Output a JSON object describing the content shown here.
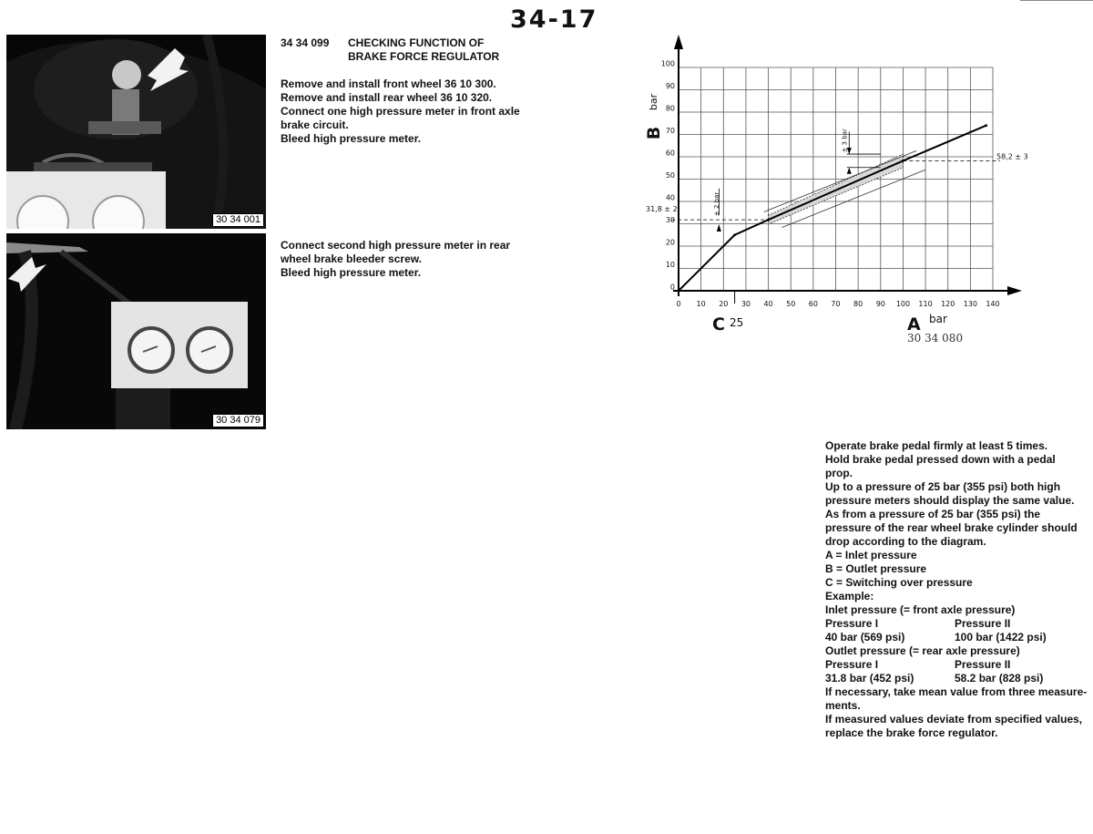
{
  "page": {
    "number": "34-17"
  },
  "section": {
    "code": "34 34 099",
    "title_line1": "CHECKING FUNCTION OF",
    "title_line2": "BRAKE FORCE REGULATOR"
  },
  "photos": [
    {
      "label": "30 34 001"
    },
    {
      "label": "30 34 079"
    }
  ],
  "steps_1": [
    "Remove and install front wheel 36 10 300.",
    "Remove and install rear wheel 36 10 320.",
    "Connect one high pressure meter in front axle",
    "brake circuit.",
    "Bleed high pressure meter."
  ],
  "steps_2": [
    "Connect second high pressure meter in rear",
    "wheel brake bleeder screw.",
    "Bleed high pressure meter."
  ],
  "procedure_top": [
    "Operate brake pedal firmly at least 5 times.",
    "Hold brake pedal pressed down with a pedal",
    "prop.",
    "Up to a pressure of 25 bar (355 psi) both high",
    "pressure meters should display the same value.",
    "As from a pressure of 25 bar (355 psi) the",
    "pressure of the rear wheel brake cylinder should",
    "drop according to the diagram.",
    "A = Inlet pressure",
    "B = Outlet pressure",
    "C = Switching over pressure",
    "Example:",
    "Inlet pressure (= front axle pressure)"
  ],
  "example_inlet": {
    "head_1": "Pressure I",
    "head_2": "Pressure II",
    "val_1": "40 bar (569 psi)",
    "val_2": "100 bar (1422 psi)"
  },
  "outlet_heading": "Outlet pressure (= rear axle pressure)",
  "example_outlet": {
    "head_1": "Pressure I",
    "head_2": "Pressure II",
    "val_1": "31.8 bar (452 psi)",
    "val_2": "58.2 bar (828 psi)"
  },
  "procedure_bottom": [
    "If necessary, take mean value from three measure-",
    "ments.",
    "If measured values deviate from specified values,",
    "replace the brake force regulator."
  ],
  "chart_data": {
    "type": "line",
    "figure_id": "30 34 080",
    "x_axis": {
      "letter": "A",
      "unit": "bar",
      "range": [
        0,
        140
      ],
      "ticks": [
        0,
        10,
        20,
        30,
        40,
        50,
        60,
        70,
        80,
        90,
        100,
        110,
        120,
        130,
        140
      ],
      "marker_letter": "C",
      "marker_value": "25"
    },
    "y_axis": {
      "letter": "B",
      "unit": "bar",
      "range": [
        0,
        100
      ],
      "ticks": [
        0,
        10,
        20,
        30,
        40,
        50,
        60,
        70,
        80,
        90,
        100
      ]
    },
    "grid": true,
    "series": [
      {
        "x": [
          0,
          25,
          40,
          100,
          137
        ],
        "y": [
          0,
          25,
          31.8,
          58.2,
          74
        ]
      }
    ],
    "tolerance": [
      {
        "at_x": 40,
        "value": "31,8 ± 2",
        "band": "± 2 bar",
        "y": 31.8,
        "delta": 2
      },
      {
        "at_x": 100,
        "value": "58,2 ± 3",
        "band": "± 3 bar",
        "y": 58.2,
        "delta": 3
      }
    ]
  }
}
